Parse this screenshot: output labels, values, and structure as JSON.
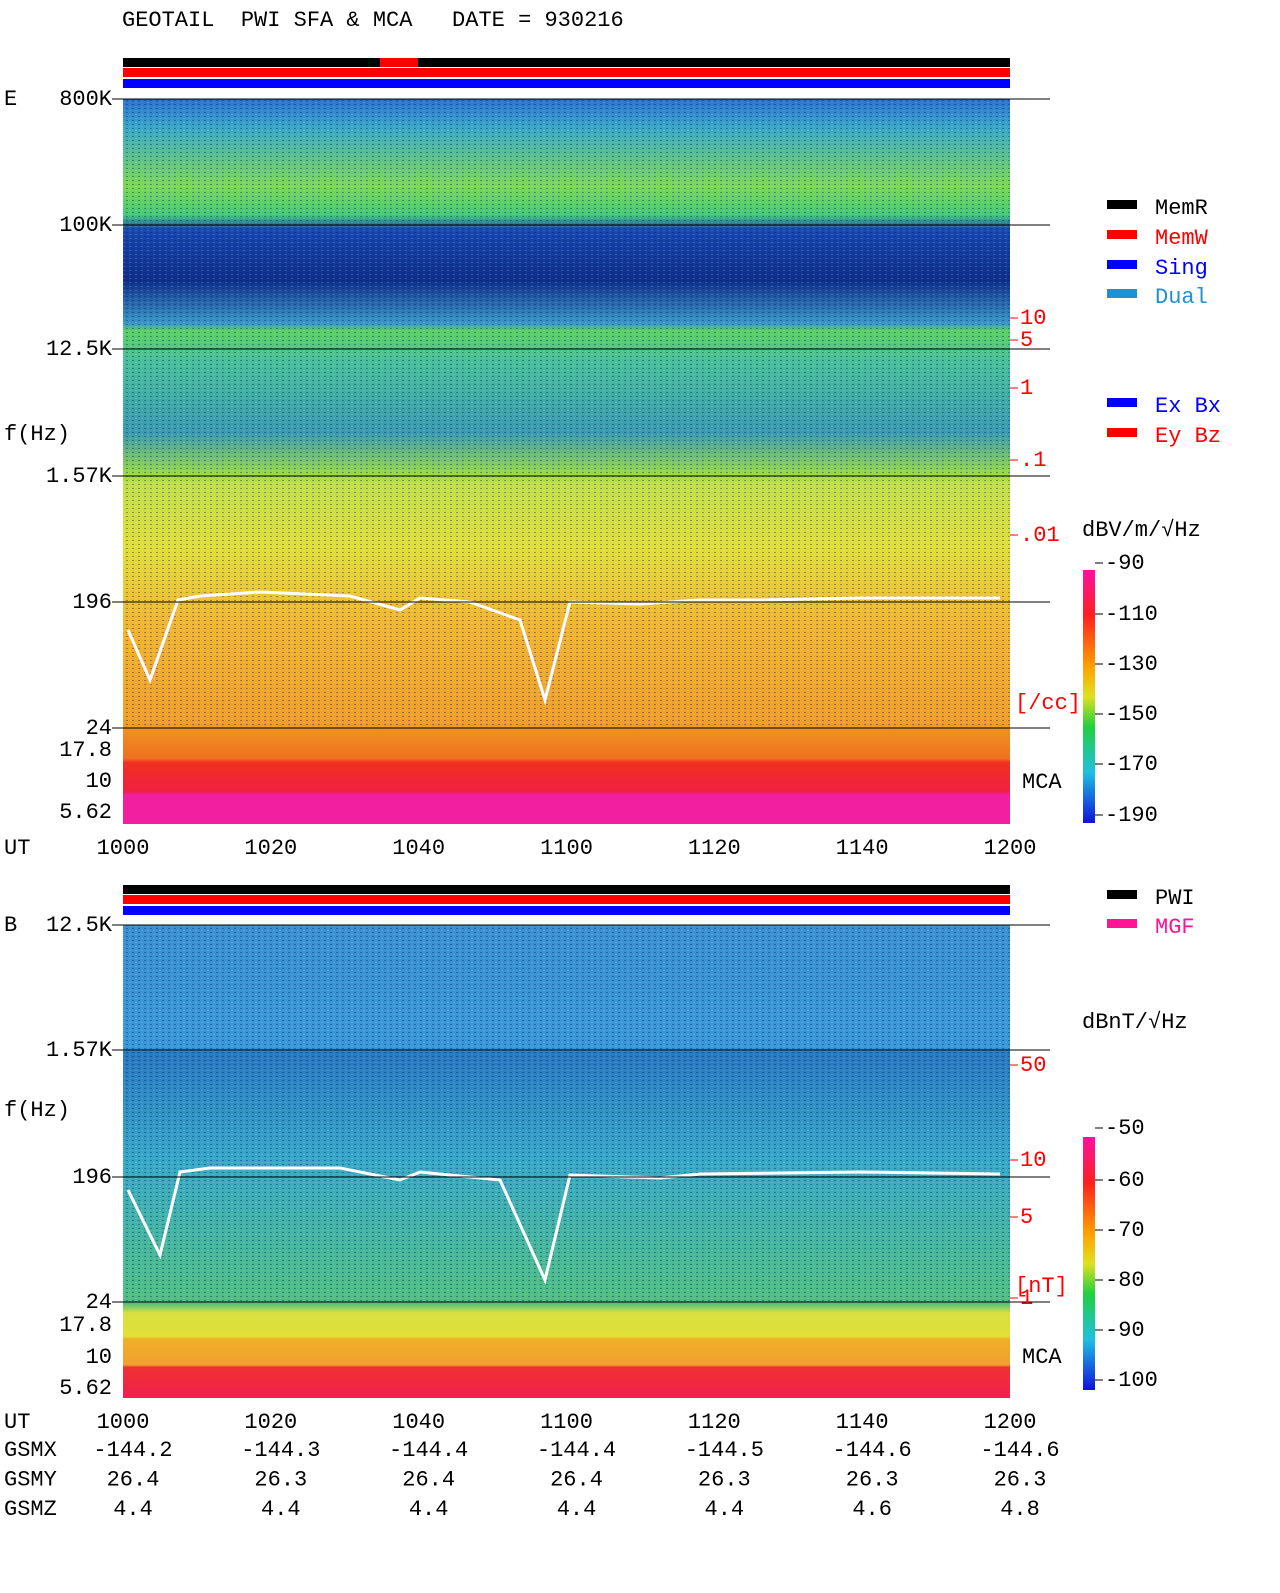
{
  "title": "GEOTAIL  PWI SFA & MCA   DATE = 930216",
  "panels": [
    {
      "label": "E",
      "ylabel": "f(Hz)",
      "yticks": [
        "800K",
        "100K",
        "12.5K",
        "1.57K",
        "196",
        "24",
        "17.8",
        "10",
        "5.62"
      ],
      "xlabel": "UT",
      "xticks": [
        "1000",
        "1020",
        "1040",
        "1100",
        "1120",
        "1140",
        "1200"
      ],
      "right_ticks": [
        "10",
        "5",
        "1",
        ".1",
        ".01"
      ],
      "right_unit": "[/cc]",
      "mca": "MCA",
      "legends": [
        [
          "MemR",
          "MemW",
          "Sing",
          "Dual"
        ],
        [
          "Ex Bx",
          "Ey Bz"
        ]
      ],
      "colorbar_label": "dBV/m/√Hz",
      "colorbar_ticks": [
        "-90",
        "-110",
        "-130",
        "-150",
        "-170",
        "-190"
      ]
    },
    {
      "label": "B",
      "ylabel": "f(Hz)",
      "yticks": [
        "12.5K",
        "1.57K",
        "196",
        "24",
        "17.8",
        "10",
        "5.62"
      ],
      "xlabel": "UT",
      "xticks": [
        "1000",
        "1020",
        "1040",
        "1100",
        "1120",
        "1140",
        "1200"
      ],
      "right_ticks": [
        "50",
        "10",
        "5",
        "1"
      ],
      "right_unit": "[nT]",
      "mca": "MCA",
      "legends": [
        [
          "PWI",
          "MGF"
        ]
      ],
      "colorbar_label": "dBnT/√Hz",
      "colorbar_ticks": [
        "-50",
        "-60",
        "-70",
        "-80",
        "-90",
        "-100"
      ]
    }
  ],
  "orbit": [
    {
      "name": "GSMX",
      "values": [
        "-144.2",
        "-144.3",
        "-144.4",
        "-144.4",
        "-144.5",
        "-144.6",
        "-144.6"
      ]
    },
    {
      "name": "GSMY",
      "values": [
        "26.4",
        "26.3",
        "26.4",
        "26.4",
        "26.3",
        "26.3",
        "26.3"
      ]
    },
    {
      "name": "GSMZ",
      "values": [
        "4.4",
        "4.4",
        "4.4",
        "4.4",
        "4.4",
        "4.6",
        "4.8"
      ]
    }
  ]
}
